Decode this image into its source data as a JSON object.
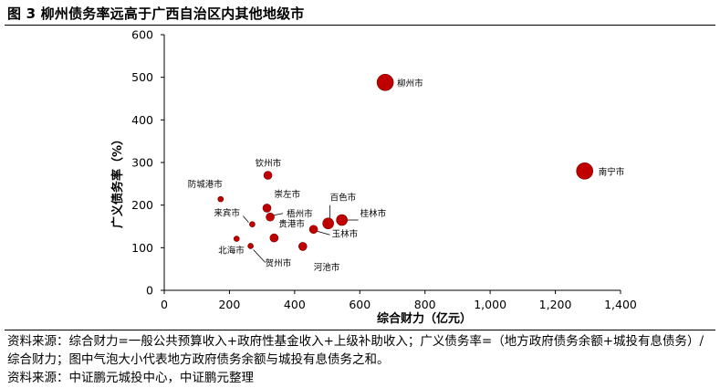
{
  "figure": {
    "title": "图 3 柳州债务率远高于广西自治区内其他地级市"
  },
  "notes": {
    "line1": "资料来源：综合财力=一般公共预算收入+政府性基金收入+上级补助收入；广义债务率=（地方政府债务余额+城投有息债务）/综合财力；图中气泡大小代表地方政府债务余额与城投有息债务之和。",
    "line2": "资料来源：中证鹏元城投中心，中证鹏元整理"
  },
  "colors": {
    "bubble": "#c00000",
    "axis": "#000000"
  },
  "chart_data": {
    "type": "scatter",
    "xlabel": "综合财力（亿元）",
    "ylabel": "广义债务率（%）",
    "xlim": [
      0,
      1400
    ],
    "ylim": [
      0,
      600
    ],
    "xticks": [
      0,
      200,
      400,
      600,
      800,
      1000,
      1200,
      1400
    ],
    "xtick_labels": [
      "0",
      "200",
      "400",
      "600",
      "800",
      "1,000",
      "1,200",
      "1,400"
    ],
    "yticks": [
      0,
      100,
      200,
      300,
      400,
      500,
      600
    ],
    "ytick_labels": [
      "0",
      "100",
      "200",
      "300",
      "400",
      "500",
      "600"
    ],
    "grid": false,
    "points": [
      {
        "name": "柳州市",
        "x": 678,
        "y": 488,
        "size": "large"
      },
      {
        "name": "南宁市",
        "x": 1290,
        "y": 280,
        "size": "large"
      },
      {
        "name": "钦州市",
        "x": 318,
        "y": 270,
        "size": "small"
      },
      {
        "name": "防城港市",
        "x": 173,
        "y": 214,
        "size": "tiny"
      },
      {
        "name": "崇左市",
        "x": 315,
        "y": 193,
        "size": "small"
      },
      {
        "name": "梧州市",
        "x": 325,
        "y": 172,
        "size": "small"
      },
      {
        "name": "来宾市",
        "x": 270,
        "y": 155,
        "size": "tiny"
      },
      {
        "name": "百色市",
        "x": 503,
        "y": 157,
        "size": "medium"
      },
      {
        "name": "桂林市",
        "x": 545,
        "y": 165,
        "size": "medium"
      },
      {
        "name": "贵港市",
        "x": 337,
        "y": 123,
        "size": "small"
      },
      {
        "name": "玉林市",
        "x": 458,
        "y": 143,
        "size": "small"
      },
      {
        "name": "北海市",
        "x": 222,
        "y": 121,
        "size": "tiny"
      },
      {
        "name": "贺州市",
        "x": 265,
        "y": 104,
        "size": "tiny"
      },
      {
        "name": "河池市",
        "x": 425,
        "y": 103,
        "size": "small"
      }
    ]
  }
}
